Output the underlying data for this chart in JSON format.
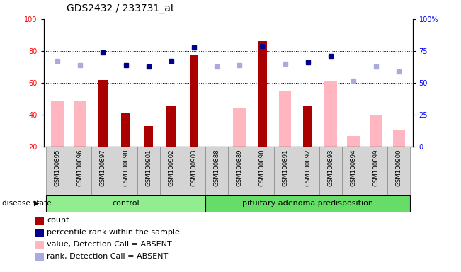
{
  "title": "GDS2432 / 233731_at",
  "samples": [
    "GSM100895",
    "GSM100896",
    "GSM100897",
    "GSM100898",
    "GSM100901",
    "GSM100902",
    "GSM100903",
    "GSM100888",
    "GSM100889",
    "GSM100890",
    "GSM100891",
    "GSM100892",
    "GSM100893",
    "GSM100894",
    "GSM100899",
    "GSM100900"
  ],
  "n_control": 7,
  "count": [
    null,
    null,
    62,
    41,
    33,
    46,
    78,
    null,
    null,
    86,
    null,
    46,
    null,
    null,
    null,
    null
  ],
  "percentile_rank": [
    null,
    null,
    74,
    64,
    63,
    67,
    78,
    null,
    null,
    79,
    null,
    66,
    71,
    null,
    null,
    null
  ],
  "value_absent": [
    49,
    49,
    null,
    null,
    null,
    null,
    null,
    null,
    44,
    null,
    55,
    null,
    61,
    27,
    40,
    31
  ],
  "rank_absent": [
    67,
    64,
    null,
    null,
    null,
    null,
    null,
    63,
    64,
    null,
    65,
    null,
    null,
    52,
    63,
    59
  ],
  "ylim_left": [
    20,
    100
  ],
  "ylim_right": [
    0,
    100
  ],
  "yticks_left": [
    20,
    40,
    60,
    80,
    100
  ],
  "yticks_right": [
    0,
    25,
    50,
    75,
    100
  ],
  "yticklabels_right": [
    "0",
    "25",
    "50",
    "75",
    "100%"
  ],
  "bar_color_count": "#aa0000",
  "bar_color_absent": "#ffb6c1",
  "marker_color_rank": "#00008b",
  "marker_color_rank_absent": "#aaaadd",
  "group_color": "#90ee90",
  "legend_items": [
    {
      "label": "count",
      "color": "#aa0000"
    },
    {
      "label": "percentile rank within the sample",
      "color": "#00008b"
    },
    {
      "label": "value, Detection Call = ABSENT",
      "color": "#ffb6c1"
    },
    {
      "label": "rank, Detection Call = ABSENT",
      "color": "#aaaadd"
    }
  ],
  "grid_lines": [
    40,
    60,
    80
  ],
  "title_fontsize": 10,
  "tick_fontsize": 7,
  "legend_fontsize": 8
}
